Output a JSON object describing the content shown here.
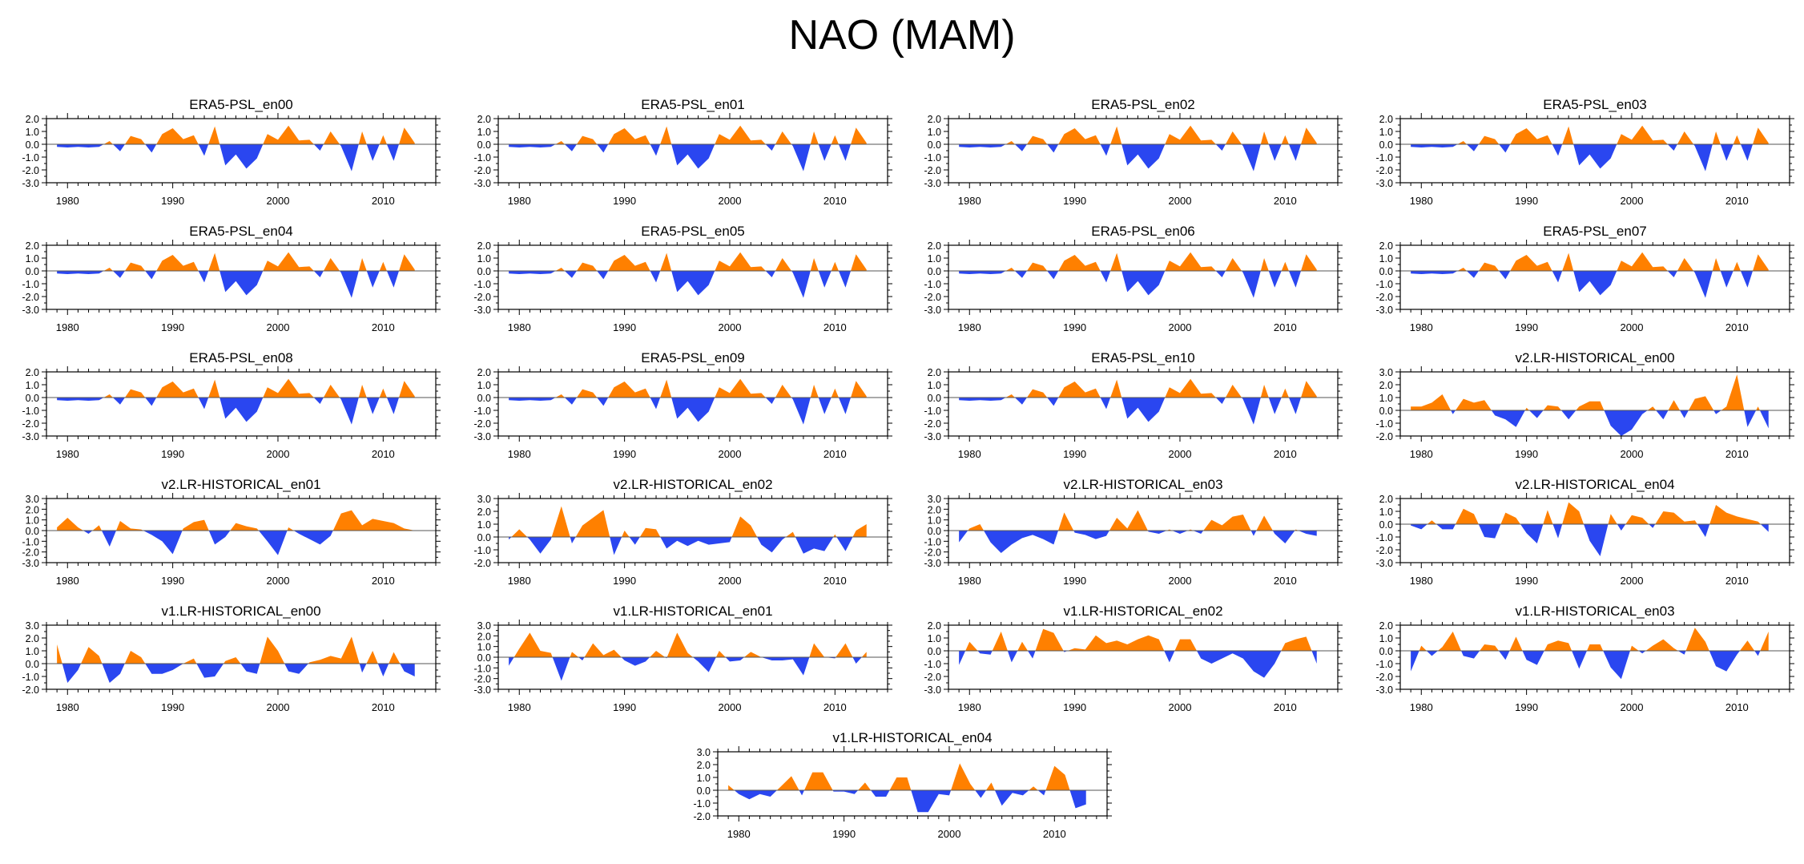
{
  "title": "NAO (MAM)",
  "colors": {
    "positive": "#ff8000",
    "negative": "#2a46f0",
    "axis": "#000000"
  },
  "templates": {
    "A": [
      -0.2,
      -0.25,
      -0.2,
      -0.25,
      -0.2,
      0.25,
      -0.55,
      0.65,
      0.4,
      -0.65,
      0.8,
      1.25,
      0.4,
      0.7,
      -0.9,
      1.4,
      -1.65,
      -0.8,
      -1.9,
      -1.1,
      0.8,
      0.35,
      1.45,
      0.3,
      0.35,
      -0.5,
      1.0,
      -0.15,
      -2.1,
      1.0,
      -1.3,
      0.7,
      -1.3,
      1.3,
      0.1
    ],
    "B": [
      0.3,
      0.3,
      0.6,
      1.25,
      -0.3,
      0.9,
      0.6,
      0.8,
      -0.4,
      -0.7,
      -1.3,
      0.2,
      -0.6,
      0.4,
      0.3,
      -0.7,
      0.3,
      0.7,
      0.7,
      -1.2,
      -2.0,
      -1.5,
      -0.3,
      0.3,
      -0.7,
      0.8,
      -0.6,
      0.9,
      1.1,
      -0.3,
      0.3,
      2.8,
      -1.3,
      0.3,
      -1.4
    ],
    "C": [
      0.3,
      1.2,
      0.3,
      -0.3,
      0.5,
      -1.5,
      0.9,
      0.2,
      0.1,
      -0.4,
      -1.0,
      -2.2,
      0.2,
      0.8,
      1.0,
      -1.3,
      -0.6,
      0.7,
      0.4,
      0.2,
      -1.0,
      -2.3,
      0.3,
      -0.3,
      -0.8,
      -1.3,
      -0.5,
      1.6,
      1.9,
      0.5,
      1.1,
      0.9,
      0.7,
      0.2,
      0.0
    ],
    "D": [
      -0.2,
      0.6,
      -0.2,
      -1.3,
      -0.2,
      2.4,
      -0.5,
      0.9,
      1.5,
      2.1,
      -1.4,
      0.5,
      -0.6,
      0.7,
      0.6,
      -0.9,
      -0.3,
      -0.7,
      -0.3,
      -0.6,
      -0.5,
      -0.4,
      1.6,
      0.9,
      -0.6,
      -1.2,
      -0.2,
      0.4,
      -1.3,
      -0.9,
      -1.1,
      0.2,
      -1.1,
      0.5,
      1.0
    ],
    "E": [
      -1.1,
      0.2,
      0.6,
      -1.1,
      -2.1,
      -1.3,
      -0.7,
      -0.4,
      -0.8,
      -1.3,
      1.7,
      -0.2,
      -0.4,
      -0.8,
      -0.5,
      1.2,
      0.2,
      1.9,
      -0.1,
      -0.3,
      0.1,
      -0.3,
      0.1,
      -0.3,
      1.0,
      0.5,
      1.3,
      1.5,
      -0.5,
      1.4,
      -0.3,
      -1.2,
      0.1,
      -0.3,
      -0.5
    ],
    "F": [
      -0.1,
      -0.4,
      0.3,
      -0.4,
      -0.4,
      1.2,
      0.8,
      -1.0,
      -1.1,
      0.9,
      0.5,
      -0.7,
      -1.5,
      1.1,
      -1.1,
      1.7,
      1.0,
      -1.3,
      -2.5,
      0.8,
      -0.5,
      0.7,
      0.5,
      -0.3,
      1.0,
      0.9,
      0.2,
      0.3,
      -1.0,
      1.5,
      0.9,
      0.6,
      0.4,
      0.2,
      -0.6
    ],
    "G": [
      1.5,
      -1.5,
      -0.5,
      1.3,
      0.6,
      -1.5,
      -0.8,
      1.0,
      0.5,
      -0.8,
      -0.8,
      -0.5,
      0.0,
      0.4,
      -1.1,
      -1.0,
      0.2,
      0.5,
      -0.6,
      -0.8,
      2.1,
      1.0,
      -0.6,
      -0.8,
      0.1,
      0.3,
      0.6,
      0.4,
      2.1,
      -0.7,
      1.0,
      -1.0,
      0.9,
      -0.6,
      -1.0
    ],
    "H": [
      -0.8,
      0.8,
      2.3,
      0.6,
      0.4,
      -2.2,
      0.5,
      -0.3,
      1.3,
      0.2,
      0.7,
      -0.3,
      -0.8,
      -0.4,
      0.6,
      -0.1,
      2.3,
      0.4,
      -0.4,
      -1.4,
      0.6,
      -0.4,
      -0.3,
      0.5,
      0.0,
      -0.3,
      -0.3,
      -0.2,
      -1.7,
      1.3,
      0.0,
      -0.1,
      1.3,
      -0.6,
      0.5
    ],
    "I": [
      -1.1,
      0.7,
      -0.2,
      -0.3,
      1.5,
      -0.9,
      0.7,
      -0.6,
      1.7,
      1.4,
      -0.1,
      0.2,
      0.1,
      1.2,
      0.6,
      0.8,
      0.5,
      0.9,
      1.2,
      0.9,
      -0.9,
      0.9,
      0.9,
      -0.6,
      -1.0,
      -0.6,
      -0.2,
      -0.6,
      -1.6,
      -2.1,
      -1.0,
      0.6,
      0.9,
      1.1,
      -1.0
    ],
    "J": [
      -1.6,
      0.4,
      -0.4,
      0.3,
      1.5,
      -0.4,
      -0.6,
      0.5,
      0.4,
      -0.7,
      1.1,
      -0.7,
      -1.1,
      0.5,
      0.8,
      0.6,
      -1.4,
      0.5,
      0.5,
      -1.3,
      -2.2,
      0.4,
      -0.2,
      0.4,
      0.9,
      0.2,
      -0.3,
      1.8,
      0.7,
      -1.2,
      -1.6,
      -0.3,
      0.8,
      -0.4,
      1.5
    ],
    "K": [
      0.4,
      -0.3,
      -0.7,
      -0.3,
      -0.5,
      0.3,
      1.1,
      -0.4,
      1.4,
      1.4,
      -0.1,
      -0.1,
      -0.3,
      0.6,
      -0.5,
      -0.5,
      1.0,
      1.0,
      -1.7,
      -1.7,
      -0.3,
      -0.4,
      2.1,
      0.5,
      -0.6,
      0.6,
      -1.2,
      -0.2,
      -0.4,
      0.3,
      -0.4,
      1.9,
      1.2,
      -1.4,
      -1.1
    ]
  },
  "panels": [
    {
      "title": "ERA5-PSL_en00",
      "tpl": "A",
      "yticks": [
        "2.0",
        "1.0",
        "0.0",
        "-1.0",
        "-2.0",
        "-3.0"
      ],
      "ymin": -3,
      "ymax": 2
    },
    {
      "title": "ERA5-PSL_en01",
      "tpl": "A",
      "yticks": [
        "2.0",
        "1.0",
        "0.0",
        "-1.0",
        "-2.0",
        "-3.0"
      ],
      "ymin": -3,
      "ymax": 2
    },
    {
      "title": "ERA5-PSL_en02",
      "tpl": "A",
      "yticks": [
        "2.0",
        "1.0",
        "0.0",
        "-1.0",
        "-2.0",
        "-3.0"
      ],
      "ymin": -3,
      "ymax": 2
    },
    {
      "title": "ERA5-PSL_en03",
      "tpl": "A",
      "yticks": [
        "2.0",
        "1.0",
        "0.0",
        "-1.0",
        "-2.0",
        "-3.0"
      ],
      "ymin": -3,
      "ymax": 2
    },
    {
      "title": "ERA5-PSL_en04",
      "tpl": "A",
      "yticks": [
        "2.0",
        "1.0",
        "0.0",
        "-1.0",
        "-2.0",
        "-3.0"
      ],
      "ymin": -3,
      "ymax": 2
    },
    {
      "title": "ERA5-PSL_en05",
      "tpl": "A",
      "yticks": [
        "2.0",
        "1.0",
        "0.0",
        "-1.0",
        "-2.0",
        "-3.0"
      ],
      "ymin": -3,
      "ymax": 2
    },
    {
      "title": "ERA5-PSL_en06",
      "tpl": "A",
      "yticks": [
        "2.0",
        "1.0",
        "0.0",
        "-1.0",
        "-2.0",
        "-3.0"
      ],
      "ymin": -3,
      "ymax": 2
    },
    {
      "title": "ERA5-PSL_en07",
      "tpl": "A",
      "yticks": [
        "2.0",
        "1.0",
        "0.0",
        "-1.0",
        "-2.0",
        "-3.0"
      ],
      "ymin": -3,
      "ymax": 2
    },
    {
      "title": "ERA5-PSL_en08",
      "tpl": "A",
      "yticks": [
        "2.0",
        "1.0",
        "0.0",
        "-1.0",
        "-2.0",
        "-3.0"
      ],
      "ymin": -3,
      "ymax": 2
    },
    {
      "title": "ERA5-PSL_en09",
      "tpl": "A",
      "yticks": [
        "2.0",
        "1.0",
        "0.0",
        "-1.0",
        "-2.0",
        "-3.0"
      ],
      "ymin": -3,
      "ymax": 2
    },
    {
      "title": "ERA5-PSL_en10",
      "tpl": "A",
      "yticks": [
        "2.0",
        "1.0",
        "0.0",
        "-1.0",
        "-2.0",
        "-3.0"
      ],
      "ymin": -3,
      "ymax": 2
    },
    {
      "title": "v2.LR-HISTORICAL_en00",
      "tpl": "B",
      "yticks": [
        "3.0",
        "2.0",
        "1.0",
        "0.0",
        "-1.0",
        "-2.0"
      ],
      "ymin": -2,
      "ymax": 3
    },
    {
      "title": "v2.LR-HISTORICAL_en01",
      "tpl": "C",
      "yticks": [
        "3.0",
        "2.0",
        "1.0",
        "0.0",
        "-1.0",
        "-2.0",
        "-3.0"
      ],
      "ymin": -3,
      "ymax": 3
    },
    {
      "title": "v2.LR-HISTORICAL_en02",
      "tpl": "D",
      "yticks": [
        "3.0",
        "2.0",
        "1.0",
        "0.0",
        "-1.0",
        "-2.0"
      ],
      "ymin": -2,
      "ymax": 3
    },
    {
      "title": "v2.LR-HISTORICAL_en03",
      "tpl": "E",
      "yticks": [
        "3.0",
        "2.0",
        "1.0",
        "0.0",
        "-1.0",
        "-2.0",
        "-3.0"
      ],
      "ymin": -3,
      "ymax": 3
    },
    {
      "title": "v2.LR-HISTORICAL_en04",
      "tpl": "F",
      "yticks": [
        "2.0",
        "1.0",
        "0.0",
        "-1.0",
        "-2.0",
        "-3.0"
      ],
      "ymin": -3,
      "ymax": 2
    },
    {
      "title": "v1.LR-HISTORICAL_en00",
      "tpl": "G",
      "yticks": [
        "3.0",
        "2.0",
        "1.0",
        "0.0",
        "-1.0",
        "-2.0"
      ],
      "ymin": -2,
      "ymax": 3
    },
    {
      "title": "v1.LR-HISTORICAL_en01",
      "tpl": "H",
      "yticks": [
        "3.0",
        "2.0",
        "1.0",
        "0.0",
        "-1.0",
        "-2.0",
        "-3.0"
      ],
      "ymin": -3,
      "ymax": 3
    },
    {
      "title": "v1.LR-HISTORICAL_en02",
      "tpl": "I",
      "yticks": [
        "2.0",
        "1.0",
        "0.0",
        "-1.0",
        "-2.0",
        "-3.0"
      ],
      "ymin": -3,
      "ymax": 2
    },
    {
      "title": "v1.LR-HISTORICAL_en03",
      "tpl": "J",
      "yticks": [
        "2.0",
        "1.0",
        "0.0",
        "-1.0",
        "-2.0",
        "-3.0"
      ],
      "ymin": -3,
      "ymax": 2
    },
    {
      "title": "v1.LR-HISTORICAL_en04",
      "tpl": "K",
      "yticks": [
        "3.0",
        "2.0",
        "1.0",
        "0.0",
        "-1.0",
        "-2.0"
      ],
      "ymin": -2,
      "ymax": 3
    }
  ],
  "chart_data": {
    "type": "area",
    "title": "NAO (MAM)",
    "description_of_axes": "each panel: x = year 1979-2014, y = NAO index (orange above zero, blue below)",
    "x_start": 1979,
    "x_end": 2014,
    "x": [
      1979,
      1980,
      1981,
      1982,
      1983,
      1984,
      1985,
      1986,
      1987,
      1988,
      1989,
      1990,
      1991,
      1992,
      1993,
      1994,
      1995,
      1996,
      1997,
      1998,
      1999,
      2000,
      2001,
      2002,
      2003,
      2004,
      2005,
      2006,
      2007,
      2008,
      2009,
      2010,
      2011,
      2012,
      2013
    ],
    "xticks": [
      "1980",
      "1990",
      "2000",
      "2010"
    ],
    "xlim": [
      1978,
      2015
    ],
    "series_ref": "panels[].tpl -> templates (values per year, same x for all panels)"
  }
}
